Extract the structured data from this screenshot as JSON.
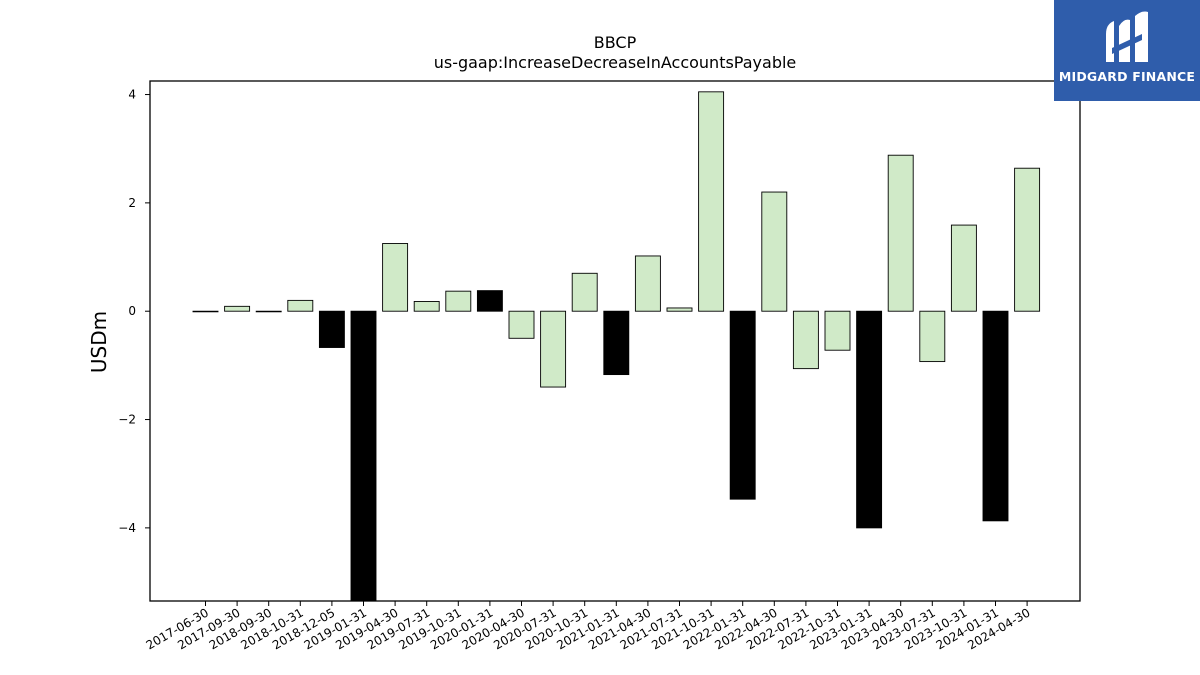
{
  "chart_data": {
    "type": "bar",
    "title": "BBCP",
    "subtitle": "us-gaap:IncreaseDecreaseInAccountsPayable",
    "xlabel": "",
    "ylabel": "USDm",
    "ylim": [
      -5.35,
      4.25
    ],
    "yticks": [
      4,
      2,
      0,
      -2,
      -4
    ],
    "grid": false,
    "legend": "none",
    "colors": {
      "quarter": "#d0eac8",
      "fiscal_year_end": "#000000",
      "edge": "#000000"
    },
    "categories": [
      "2017-06-30",
      "2017-09-30",
      "2018-09-30",
      "2018-10-31",
      "2018-12-05",
      "2019-01-31",
      "2019-04-30",
      "2019-07-31",
      "2019-10-31",
      "2020-01-31",
      "2020-04-30",
      "2020-07-31",
      "2020-10-31",
      "2021-01-31",
      "2021-04-30",
      "2021-07-31",
      "2021-10-31",
      "2022-01-31",
      "2022-04-30",
      "2022-07-31",
      "2022-10-31",
      "2023-01-31",
      "2023-04-30",
      "2023-07-31",
      "2023-10-31",
      "2024-01-31",
      "2024-04-30"
    ],
    "values": [
      0.0,
      0.09,
      0.0,
      0.2,
      -0.67,
      -5.6,
      1.25,
      0.18,
      0.37,
      0.38,
      -0.5,
      -1.4,
      0.7,
      -1.17,
      1.02,
      0.06,
      4.05,
      -3.47,
      2.2,
      -1.06,
      -0.72,
      -4.0,
      2.88,
      -0.93,
      1.59,
      -3.87,
      2.64
    ],
    "highlight": [
      false,
      false,
      false,
      false,
      true,
      true,
      false,
      false,
      false,
      true,
      false,
      false,
      false,
      true,
      false,
      false,
      false,
      true,
      false,
      false,
      false,
      true,
      false,
      false,
      false,
      true,
      false
    ]
  },
  "logo": {
    "text": "MIDGARD FINANCE",
    "icon": "midgard-m-logo-icon"
  }
}
